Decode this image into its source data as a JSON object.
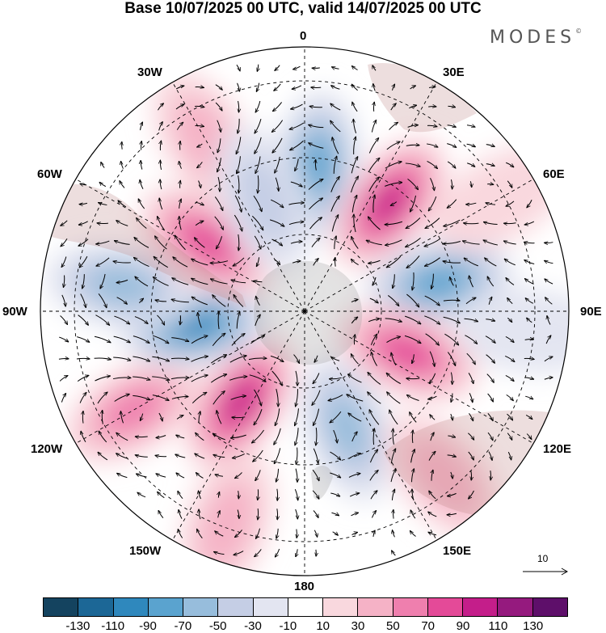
{
  "title": "Base 10/07/2025 00 UTC, valid 14/07/2025 00 UTC",
  "brand": {
    "text": "MODES",
    "mark": "©"
  },
  "longitude_labels": {
    "lon_0": "0",
    "lon_30e": "30E",
    "lon_60e": "60E",
    "lon_90e": "90E",
    "lon_120e": "120E",
    "lon_150e": "150E",
    "lon_180": "180",
    "lon_150w": "150W",
    "lon_120w": "120W",
    "lon_90w": "90W",
    "lon_60w": "60W",
    "lon_30w": "30W"
  },
  "reference_vector": {
    "label": "10"
  },
  "colorbar": {
    "colors": [
      "#14435f",
      "#1c6796",
      "#2f88bd",
      "#5aa3cf",
      "#97bddc",
      "#c5cee5",
      "#e3e5f1",
      "#ffffff",
      "#f9d8de",
      "#f5b2c6",
      "#ef7fae",
      "#e44a98",
      "#c41e8a",
      "#951a7e",
      "#5e0f6a"
    ],
    "ticks": [
      "-130",
      "-110",
      "-90",
      "-70",
      "-50",
      "-30",
      "-10",
      "10",
      "30",
      "50",
      "70",
      "90",
      "110",
      "130"
    ]
  },
  "anomaly_centers": [
    {
      "lon": 5,
      "r": 0.55,
      "value": -90
    },
    {
      "lon": 38,
      "r": 0.52,
      "value": 110
    },
    {
      "lon": 78,
      "r": 0.52,
      "value": -90
    },
    {
      "lon": 112,
      "r": 0.42,
      "value": 80
    },
    {
      "lon": 160,
      "r": 0.47,
      "value": -70
    },
    {
      "lon": 215,
      "r": 0.42,
      "value": 110
    },
    {
      "lon": 240,
      "r": 0.75,
      "value": 70
    },
    {
      "lon": 263,
      "r": 0.42,
      "value": -110
    },
    {
      "lon": 278,
      "r": 0.7,
      "value": -70
    },
    {
      "lon": 305,
      "r": 0.45,
      "value": 80
    },
    {
      "lon": 330,
      "r": 0.75,
      "value": 40
    },
    {
      "lon": 140,
      "r": 0.82,
      "value": 40
    },
    {
      "lon": 95,
      "r": 0.86,
      "value": -30
    },
    {
      "lon": 60,
      "r": 0.86,
      "value": 30
    },
    {
      "lon": 200,
      "r": 0.86,
      "value": 40
    },
    {
      "lon": 340,
      "r": 0.45,
      "value": -40
    }
  ]
}
